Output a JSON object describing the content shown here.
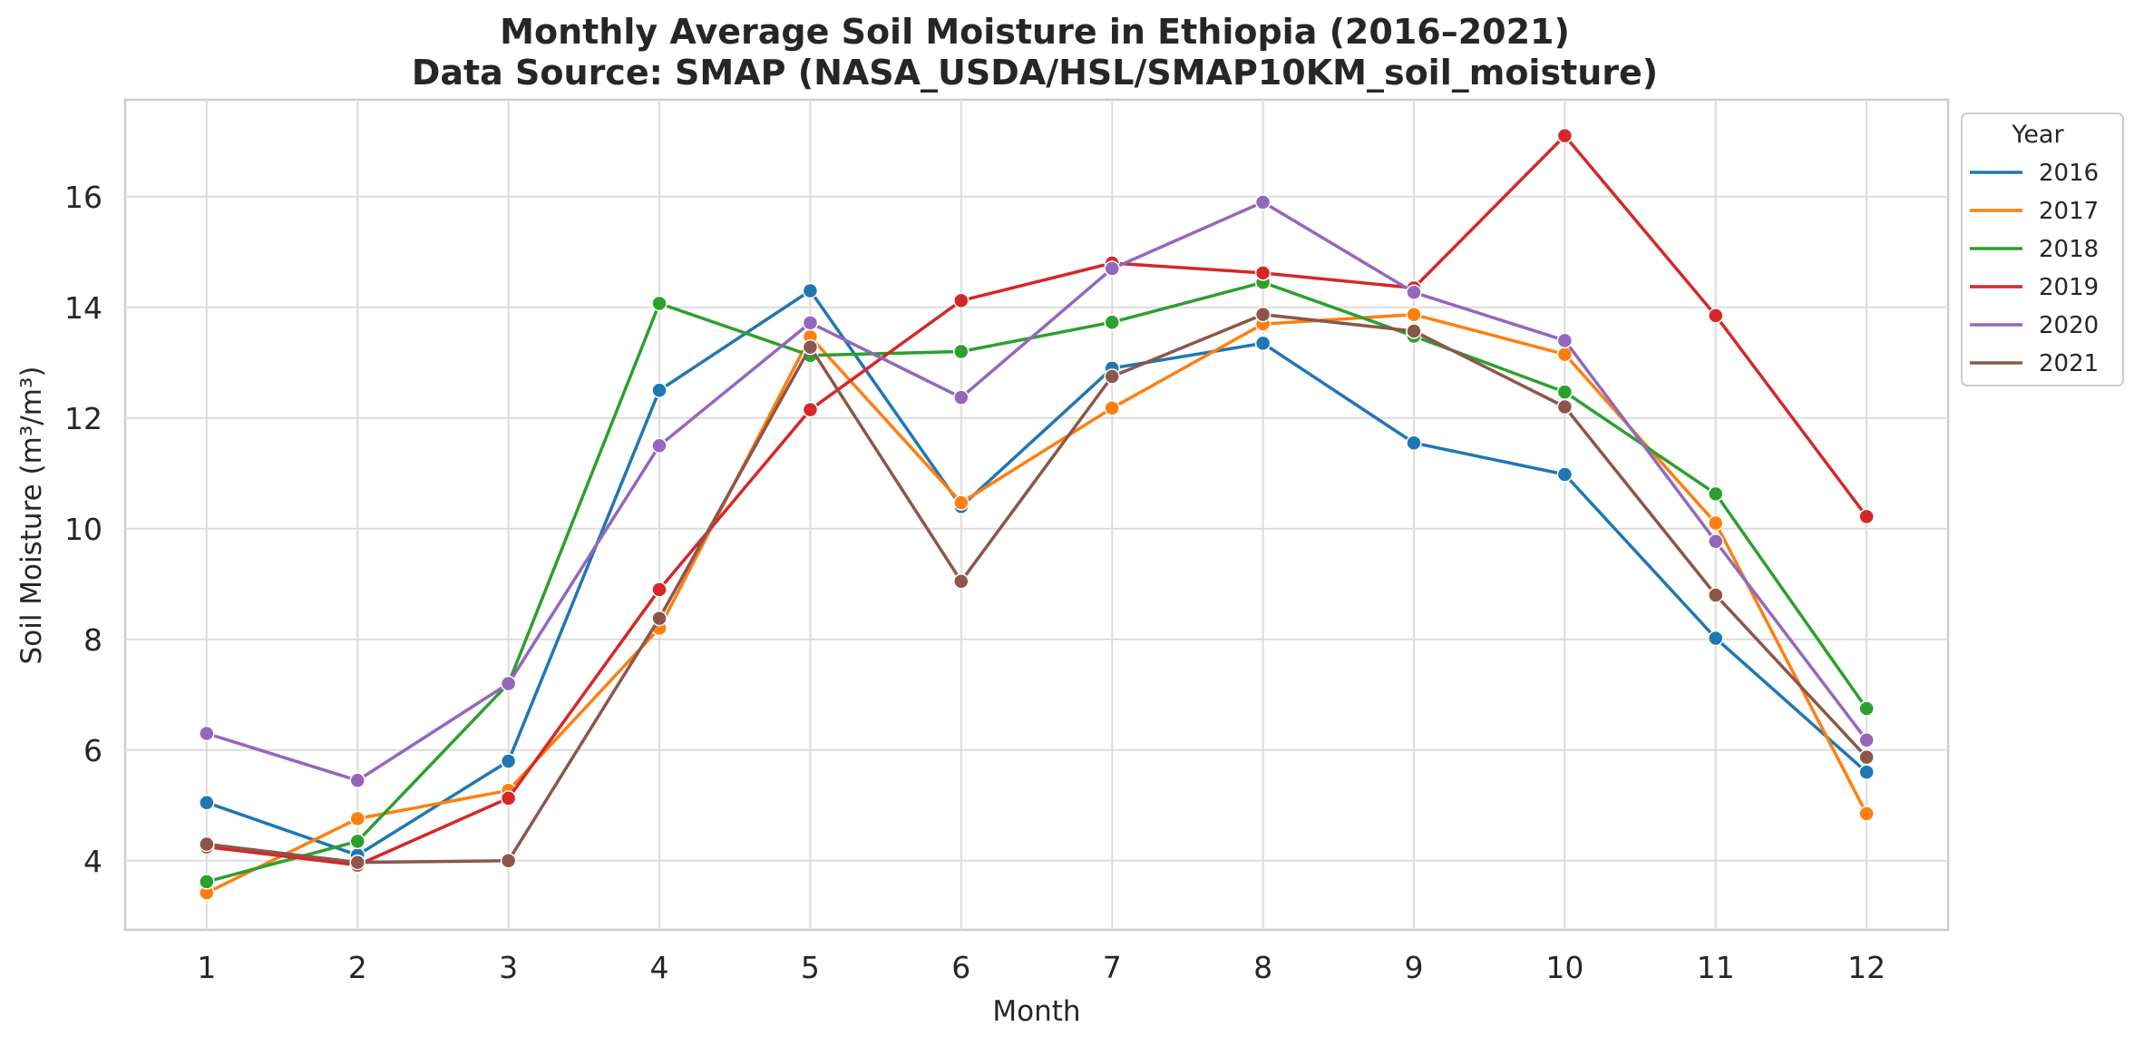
{
  "chart_data": {
    "type": "line",
    "title": "Monthly Average Soil Moisture in Ethiopia (2016–2021)",
    "subtitle": "Data Source: SMAP (NASA_USDA/HSL/SMAP10KM_soil_moisture)",
    "xlabel": "Month",
    "ylabel": "Soil Moisture (m³/m³)",
    "x": [
      1,
      2,
      3,
      4,
      5,
      6,
      7,
      8,
      9,
      10,
      11,
      12
    ],
    "x_ticks": [
      "1",
      "2",
      "3",
      "4",
      "5",
      "6",
      "7",
      "8",
      "9",
      "10",
      "11",
      "12"
    ],
    "y_ticks": [
      "4",
      "6",
      "8",
      "10",
      "12",
      "14",
      "16"
    ],
    "xlim": [
      0.46,
      12.54
    ],
    "ylim": [
      2.75,
      17.75
    ],
    "grid": true,
    "legend_title": "Year",
    "legend_position": "top-right, outside plot",
    "series": [
      {
        "name": "2016",
        "color": "#1f77b4",
        "values": [
          5.05,
          4.1,
          5.8,
          12.5,
          14.3,
          10.4,
          12.9,
          13.35,
          11.55,
          10.98,
          8.02,
          5.6
        ]
      },
      {
        "name": "2017",
        "color": "#ff7f0e",
        "values": [
          3.42,
          4.76,
          5.27,
          8.2,
          13.47,
          10.47,
          12.18,
          13.7,
          13.87,
          13.15,
          10.1,
          4.85
        ]
      },
      {
        "name": "2018",
        "color": "#2ca02c",
        "values": [
          3.62,
          4.35,
          7.2,
          14.07,
          13.13,
          13.2,
          13.73,
          14.45,
          13.48,
          12.47,
          10.63,
          6.75
        ]
      },
      {
        "name": "2019",
        "color": "#d62728",
        "values": [
          4.25,
          3.92,
          5.13,
          8.9,
          12.15,
          14.12,
          14.8,
          14.62,
          14.35,
          17.1,
          13.85,
          10.22
        ]
      },
      {
        "name": "2020",
        "color": "#9467bd",
        "values": [
          6.3,
          5.45,
          7.2,
          11.5,
          13.72,
          12.37,
          14.7,
          15.9,
          14.27,
          13.4,
          9.77,
          6.18
        ]
      },
      {
        "name": "2021",
        "color": "#8c564b",
        "values": [
          4.3,
          3.97,
          4.0,
          8.38,
          13.28,
          9.05,
          12.75,
          13.87,
          13.57,
          12.2,
          8.8,
          5.87
        ]
      }
    ]
  }
}
